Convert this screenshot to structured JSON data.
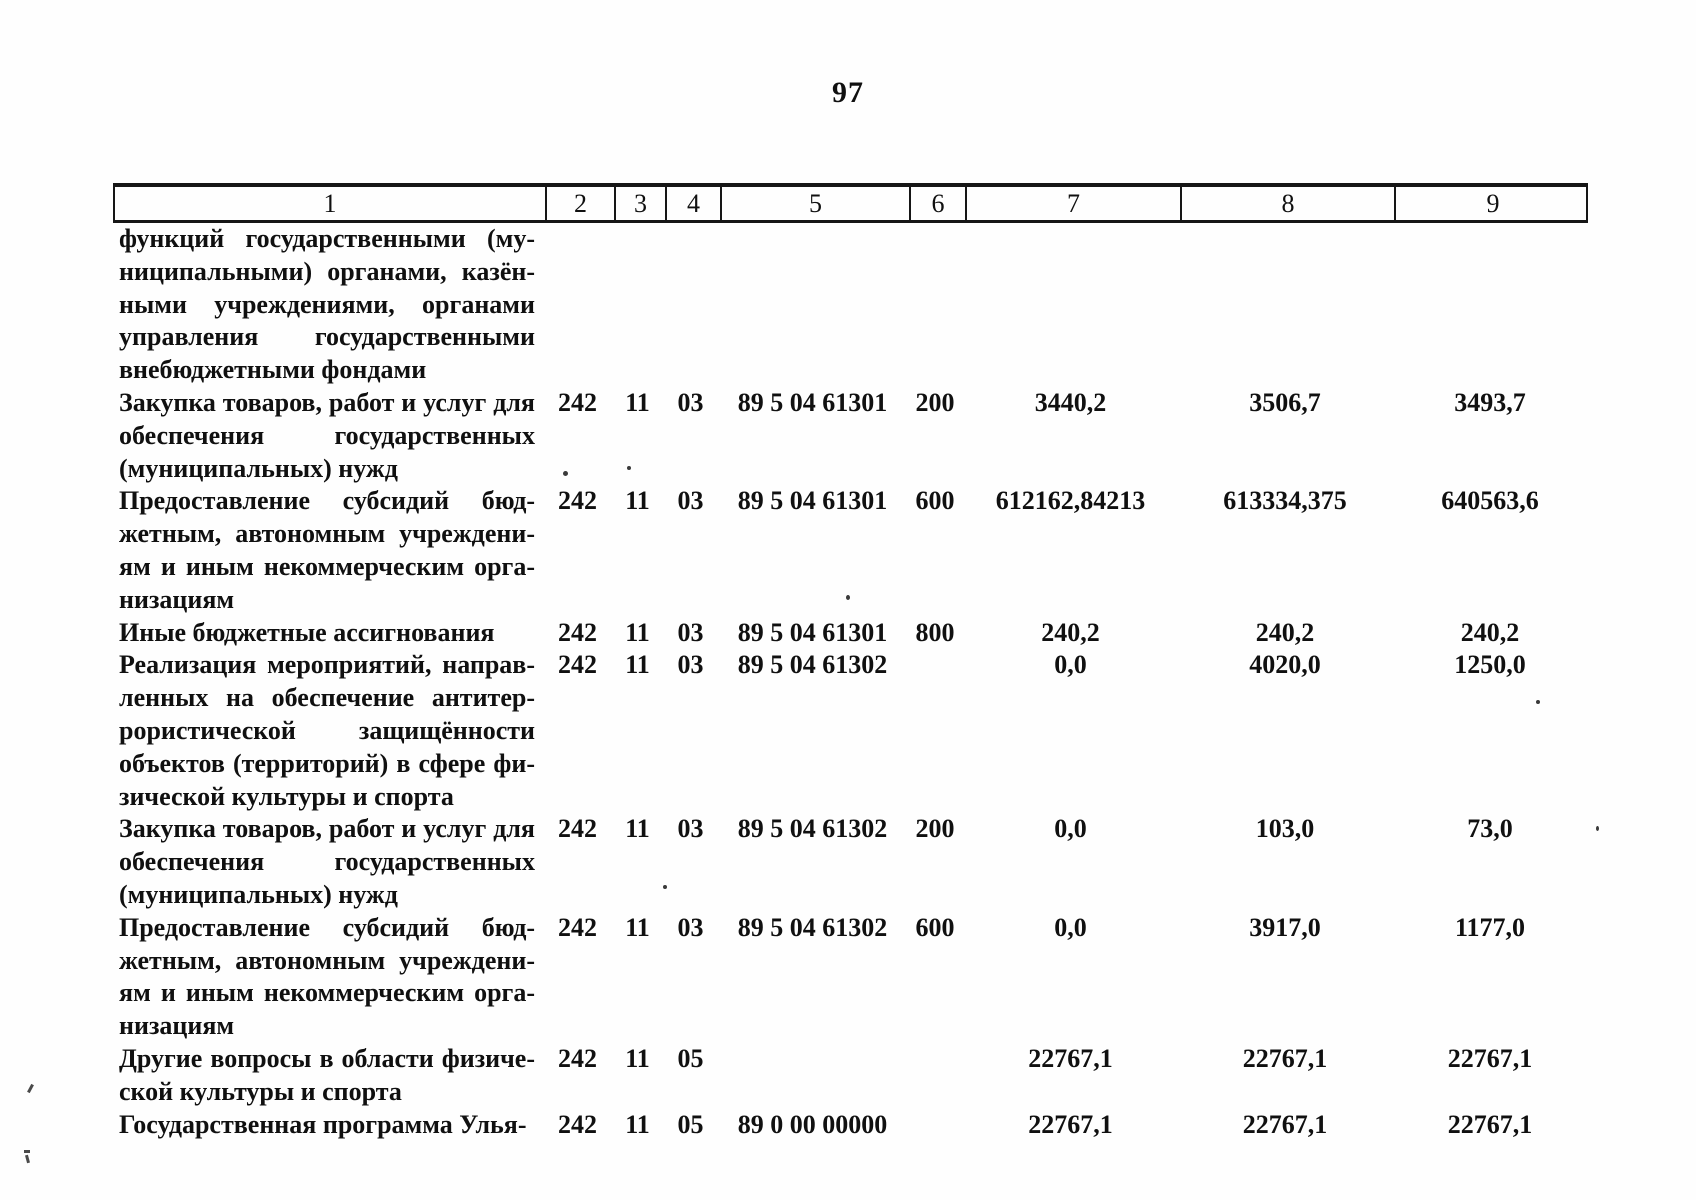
{
  "page": {
    "number": "97"
  },
  "table": {
    "header": [
      "1",
      "2",
      "3",
      "4",
      "5",
      "6",
      "7",
      "8",
      "9"
    ],
    "rows": [
      {
        "lines": [
          "функций государственными (му-",
          "ниципальными) органами, казён-",
          "ными учреждениями, органами",
          "управления государственными",
          "внебюджетными фондами"
        ],
        "c2": "",
        "c3": "",
        "c4": "",
        "c5": "",
        "c6": "",
        "c7": "",
        "c8": "",
        "c9": ""
      },
      {
        "lines": [
          "Закупка товаров, работ и услуг для",
          "обеспечения государственных",
          "(муниципальных) нужд"
        ],
        "c2": "242",
        "c3": "11",
        "c4": "03",
        "c5": "89 5 04 61301",
        "c6": "200",
        "c7": "3440,2",
        "c8": "3506,7",
        "c9": "3493,7"
      },
      {
        "lines": [
          "Предоставление субсидий бюд-",
          "жетным, автономным учреждени-",
          "ям и иным некоммерческим орга-",
          "низациям"
        ],
        "c2": "242",
        "c3": "11",
        "c4": "03",
        "c5": "89 5 04 61301",
        "c6": "600",
        "c7": "612162,84213",
        "c8": "613334,375",
        "c9": "640563,6"
      },
      {
        "lines": [
          "Иные бюджетные ассигнования"
        ],
        "c2": "242",
        "c3": "11",
        "c4": "03",
        "c5": "89 5 04 61301",
        "c6": "800",
        "c7": "240,2",
        "c8": "240,2",
        "c9": "240,2"
      },
      {
        "lines": [
          "Реализация мероприятий, направ-",
          "ленных на обеспечение антитер-",
          "рористической защищённости",
          "объектов (территорий) в сфере фи-",
          "зической культуры и спорта"
        ],
        "c2": "242",
        "c3": "11",
        "c4": "03",
        "c5": "89 5 04 61302",
        "c6": "",
        "c7": "0,0",
        "c8": "4020,0",
        "c9": "1250,0"
      },
      {
        "lines": [
          "Закупка товаров, работ и услуг для",
          "обеспечения государственных",
          "(муниципальных) нужд"
        ],
        "c2": "242",
        "c3": "11",
        "c4": "03",
        "c5": "89 5 04 61302",
        "c6": "200",
        "c7": "0,0",
        "c8": "103,0",
        "c9": "73,0"
      },
      {
        "lines": [
          "Предоставление субсидий бюд-",
          "жетным, автономным учреждени-",
          "ям и иным некоммерческим орга-",
          "низациям"
        ],
        "c2": "242",
        "c3": "11",
        "c4": "03",
        "c5": "89 5 04 61302",
        "c6": "600",
        "c7": "0,0",
        "c8": "3917,0",
        "c9": "1177,0"
      },
      {
        "lines": [
          "Другие вопросы в области физиче-",
          "ской культуры и спорта"
        ],
        "c2": "242",
        "c3": "11",
        "c4": "05",
        "c5": "",
        "c6": "",
        "c7": "22767,1",
        "c8": "22767,1",
        "c9": "22767,1"
      },
      {
        "lines": [
          "Государственная программа Улья-"
        ],
        "c2": "242",
        "c3": "11",
        "c4": "05",
        "c5": "89 0 00 00000",
        "c6": "",
        "c7": "22767,1",
        "c8": "22767,1",
        "c9": "22767,1"
      }
    ]
  }
}
